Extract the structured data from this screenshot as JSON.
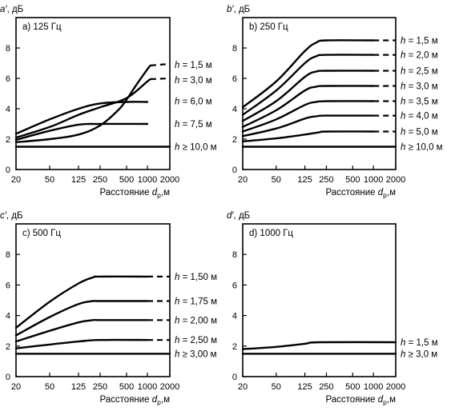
{
  "chart_data": [
    {
      "type": "line",
      "panel": "a'",
      "ylabel": "a′, дБ",
      "title": "a) 125 Гц",
      "xlabel": "Расстояние d_p,м",
      "x_ticks": [
        20,
        50,
        125,
        250,
        500,
        1000,
        2000
      ],
      "y_ticks": [
        0,
        2,
        4,
        6,
        8
      ],
      "ylim": [
        0,
        10
      ],
      "series": [
        {
          "name": "h = 1,5 м",
          "x": [
            20,
            50,
            125,
            250,
            400,
            500,
            700,
            1000,
            1100
          ],
          "y": [
            1.8,
            2.0,
            2.3,
            2.9,
            3.9,
            4.6,
            5.6,
            6.6,
            6.85
          ],
          "x_dash": 2000,
          "y_dash": 6.95
        },
        {
          "name": "h = 3,0 м",
          "x": [
            20,
            50,
            125,
            250,
            500,
            1000,
            1100
          ],
          "y": [
            2.1,
            2.8,
            3.6,
            4.1,
            4.7,
            5.8,
            5.95
          ],
          "x_dash": 2000,
          "y_dash": 6.0
        },
        {
          "name": "h = 6,0 м",
          "x": [
            20,
            50,
            125,
            250,
            500,
            1000
          ],
          "y": [
            2.35,
            3.3,
            4.0,
            4.35,
            4.45,
            4.45
          ]
        },
        {
          "name": "h = 7,5 м",
          "x": [
            20,
            50,
            125,
            250,
            1000
          ],
          "y": [
            1.95,
            2.55,
            2.95,
            3.0,
            3.0
          ]
        },
        {
          "name": "h ≥ 10,0 м",
          "x": [
            20,
            2000
          ],
          "y": [
            1.5,
            1.5
          ]
        }
      ]
    },
    {
      "type": "line",
      "panel": "b'",
      "ylabel": "b′, дБ",
      "title": "b) 250 Гц",
      "xlabel": "Расстояние d_p,м",
      "x_ticks": [
        20,
        50,
        125,
        250,
        500,
        1000,
        2000
      ],
      "y_ticks": [
        0,
        2,
        4,
        6,
        8
      ],
      "ylim": [
        0,
        10
      ],
      "series": [
        {
          "name": "h = 1,5 м",
          "x": [
            20,
            50,
            125,
            180,
            250,
            1000
          ],
          "y": [
            4.1,
            5.8,
            7.8,
            8.35,
            8.5,
            8.5
          ],
          "x_dash": 2000,
          "y_dash": 8.5
        },
        {
          "name": "h = 2,0 м",
          "x": [
            20,
            50,
            125,
            180,
            250,
            1000
          ],
          "y": [
            3.6,
            5.2,
            7.0,
            7.45,
            7.55,
            7.55
          ],
          "x_dash": 2000,
          "y_dash": 7.55
        },
        {
          "name": "h = 2,5 м",
          "x": [
            20,
            50,
            125,
            180,
            250,
            1000
          ],
          "y": [
            3.2,
            4.5,
            6.1,
            6.45,
            6.5,
            6.5
          ],
          "x_dash": 2000,
          "y_dash": 6.5
        },
        {
          "name": "h = 3,0 м",
          "x": [
            20,
            50,
            125,
            180,
            250,
            1000
          ],
          "y": [
            2.8,
            3.9,
            5.2,
            5.45,
            5.5,
            5.5
          ],
          "x_dash": 2000,
          "y_dash": 5.5
        },
        {
          "name": "h = 3,5 м",
          "x": [
            20,
            50,
            125,
            180,
            250,
            1000
          ],
          "y": [
            2.5,
            3.3,
            4.25,
            4.45,
            4.5,
            4.5
          ],
          "x_dash": 2000,
          "y_dash": 4.5
        },
        {
          "name": "h = 4,0 м",
          "x": [
            20,
            50,
            125,
            180,
            250,
            1000
          ],
          "y": [
            2.2,
            2.7,
            3.35,
            3.5,
            3.55,
            3.55
          ],
          "x_dash": 2000,
          "y_dash": 3.55
        },
        {
          "name": "h = 5,0 м",
          "x": [
            20,
            50,
            125,
            200,
            250,
            1000
          ],
          "y": [
            1.85,
            2.05,
            2.3,
            2.45,
            2.5,
            2.5
          ],
          "x_dash": 2000,
          "y_dash": 2.5
        },
        {
          "name": "h ≥ 10,0 м",
          "x": [
            20,
            2000
          ],
          "y": [
            1.5,
            1.5
          ]
        }
      ]
    },
    {
      "type": "line",
      "panel": "c'",
      "ylabel": "c′, дБ",
      "title": "c) 500 Гц",
      "xlabel": "Расстояние d_p,м",
      "x_ticks": [
        20,
        50,
        125,
        250,
        500,
        1000,
        2000
      ],
      "y_ticks": [
        0,
        2,
        4,
        6,
        8
      ],
      "ylim": [
        0,
        10
      ],
      "series": [
        {
          "name": "h = 1,50 м",
          "x": [
            20,
            50,
            125,
            200,
            250,
            1000
          ],
          "y": [
            3.2,
            4.9,
            6.1,
            6.5,
            6.55,
            6.55
          ],
          "x_dash": 2000,
          "y_dash": 6.55
        },
        {
          "name": "h = 1,75 м",
          "x": [
            20,
            50,
            125,
            200,
            250,
            1000
          ],
          "y": [
            2.7,
            3.9,
            4.75,
            4.95,
            4.95,
            4.95
          ],
          "x_dash": 2000,
          "y_dash": 4.95
        },
        {
          "name": "h = 2,00 м",
          "x": [
            20,
            50,
            125,
            200,
            250,
            1000
          ],
          "y": [
            2.3,
            3.0,
            3.55,
            3.7,
            3.7,
            3.7
          ],
          "x_dash": 2000,
          "y_dash": 3.7
        },
        {
          "name": "h = 2,50 м",
          "x": [
            20,
            50,
            125,
            250,
            1000
          ],
          "y": [
            1.85,
            2.1,
            2.3,
            2.4,
            2.4
          ],
          "x_dash": 2000,
          "y_dash": 2.4
        },
        {
          "name": "h ≥ 3,00 м",
          "x": [
            20,
            2000
          ],
          "y": [
            1.5,
            1.5
          ]
        }
      ]
    },
    {
      "type": "line",
      "panel": "d'",
      "ylabel": "d′, дБ",
      "title": "d) 1000 Гц",
      "xlabel": "Расстояние d_p,м",
      "x_ticks": [
        20,
        50,
        125,
        250,
        500,
        1000,
        2000
      ],
      "y_ticks": [
        0,
        2,
        4,
        6,
        8
      ],
      "ylim": [
        0,
        10
      ],
      "series": [
        {
          "name": "h = 1,5 м",
          "x": [
            20,
            50,
            125,
            200,
            2000
          ],
          "y": [
            1.8,
            1.95,
            2.15,
            2.25,
            2.25
          ]
        },
        {
          "name": "h ≥ 3,0 м",
          "x": [
            20,
            2000
          ],
          "y": [
            1.5,
            1.5
          ]
        }
      ]
    }
  ]
}
